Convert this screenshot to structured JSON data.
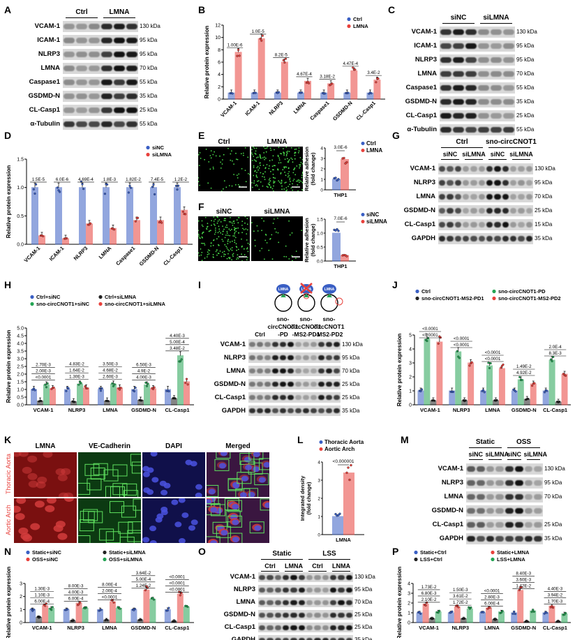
{
  "kda": {
    "k130": "130 kDa",
    "k95": "95 kDa",
    "k70": "70 kDa",
    "k55": "55 kDa",
    "k35": "35 kDa",
    "k25": "25 kDa",
    "k15": "15 kDa"
  },
  "panels": {
    "A": {
      "label": "A",
      "groups": [
        "Ctrl",
        "LMNA"
      ],
      "rows": [
        "VCAM-1",
        "ICAM-1",
        "NLRP3",
        "LMNA",
        "Caspase1",
        "GSDMD-N",
        "CL-Casp1",
        "α-Tubulin"
      ],
      "kda": [
        "130 kDa",
        "95 kDa",
        "95 kDa",
        "70 kDa",
        "55 kDa",
        "35 kDa",
        "25 kDa",
        "55 kDa"
      ]
    },
    "C": {
      "label": "C",
      "groups": [
        "siNC",
        "siLMNA"
      ],
      "rows": [
        "VCAM-1",
        "ICAM-1",
        "NLRP3",
        "LMNA",
        "Caspase1",
        "GSDMD-N",
        "CL-Casp1",
        "α-Tubulin"
      ],
      "kda": [
        "130 kDa",
        "95 kDa",
        "95 kDa",
        "70 kDa",
        "55 kDa",
        "35 kDa",
        "25 kDa",
        "55 kDa"
      ]
    },
    "E": {
      "label": "E",
      "img_labels": [
        "Ctrl",
        "LMNA"
      ],
      "legend": [
        "Ctrl",
        "LMNA"
      ],
      "ylabel": "Relative adhesion\n(fold change)",
      "xlabel": "THP1",
      "pval": "3.0E-6",
      "yticks": [
        "0",
        "1",
        "2",
        "3",
        "4"
      ]
    },
    "F": {
      "label": "F",
      "img_labels": [
        "siNC",
        "siLMNA"
      ],
      "legend": [
        "siNC",
        "siLMNA"
      ],
      "ylabel": "Relative adhesion\n(fold change)",
      "xlabel": "THP1",
      "pval": "7.0E-6",
      "yticks": [
        "0.0",
        "0.5",
        "1.0",
        "1.5"
      ]
    },
    "G": {
      "label": "G",
      "groups": [
        "Ctrl",
        "sno-circCNOT1"
      ],
      "subgroups": [
        "siNC",
        "siLMNA",
        "siNC",
        "siLMNA"
      ],
      "rows": [
        "VCAM-1",
        "NLRP3",
        "LMNA",
        "GSDMD-N",
        "CL-Casp1",
        "GAPDH"
      ],
      "kda": [
        "130 kDa",
        "95 kDa",
        "70 kDa",
        "25 kDa",
        "15 kDa",
        "35 kDa"
      ]
    },
    "I": {
      "label": "I",
      "cols": [
        "Ctrl",
        "sno-\ncircCNOT1\n-PD",
        "sno-\ncircCNOT1\n-MS2-PD1",
        "sno-\ncircCNOT1\n-MS2-PD2"
      ],
      "icon_text": "LMNA",
      "rows": [
        "VCAM-1",
        "NLRP3",
        "LMNA",
        "GSDMD-N",
        "CL-Casp1",
        "GAPDH"
      ],
      "kda": [
        "130 kDa",
        "95 kDa",
        "70 kDa",
        "25 kDa",
        "25 kDa",
        "35 kDa"
      ]
    },
    "K": {
      "label": "K",
      "cols": [
        "LMNA",
        "VE-Cadherin",
        "DAPI",
        "Merged"
      ],
      "rows": [
        "Thoracic Aorta",
        "Aortic Arch"
      ]
    },
    "L": {
      "label": "L",
      "legend": [
        "Thoracic Aorta",
        "Aortic Arch"
      ],
      "ylabel": "Integrated density\n(fold change)",
      "xlabel": "LMNA",
      "pval": "<0.000001",
      "yticks": [
        "0",
        "1",
        "2",
        "3",
        "4"
      ]
    },
    "M": {
      "label": "M",
      "groups": [
        "Static",
        "OSS"
      ],
      "subgroups": [
        "siNC",
        "siLMNA",
        "siNC",
        "siLMNA"
      ],
      "rows": [
        "VCAM-1",
        "NLRP3",
        "LMNA",
        "GSDMD-N",
        "CL-Casp1",
        "GAPDH"
      ],
      "kda": [
        "130 kDa",
        "95 kDa",
        "70 kDa",
        "",
        "25 kDa",
        "35 kDa"
      ]
    },
    "O": {
      "label": "O",
      "groups": [
        "Static",
        "LSS"
      ],
      "subgroups": [
        "Ctrl",
        "LMNA",
        "Ctrl",
        "LNMA"
      ],
      "rows": [
        "VCAM-1",
        "NLRP3",
        "LMNA",
        "GSDMD-N",
        "CL-Casp1",
        "GAPDH"
      ],
      "kda": [
        "130 kDa",
        "95 kDa",
        "70 kDa",
        "25 kDa",
        "25 kDa",
        "35 kDa"
      ]
    }
  },
  "colors": {
    "blue": "#3a5fc4",
    "red": "#e8413c",
    "black": "#222222",
    "green": "#24a454"
  },
  "chart_data": [
    {
      "panel": "B",
      "type": "bar",
      "ylabel": "Relative protein expression",
      "ylim": [
        0,
        12
      ],
      "yticks": [
        "0",
        "2",
        "4",
        "6",
        "8",
        "10",
        "12"
      ],
      "categories": [
        "VCAM-1",
        "ICAM-1",
        "NLRP3",
        "LMNA",
        "Caspase1",
        "GSDMD-N",
        "CL-Casp1"
      ],
      "series": [
        {
          "name": "Ctrl",
          "values": [
            1,
            1,
            1,
            1,
            1,
            1,
            1
          ]
        },
        {
          "name": "LMNA",
          "values": [
            7.6,
            9.8,
            6.0,
            2.9,
            2.5,
            4.6,
            3.1
          ]
        }
      ],
      "pvals": [
        "1.00E-6",
        "1.0E-5",
        "8.2E-5",
        "4.67E-4",
        "3.18E-2",
        "4.47E-4",
        "3.4E-2"
      ],
      "legend": "top-right"
    },
    {
      "panel": "D",
      "type": "bar",
      "ylabel": "Relative protein expression",
      "ylim": [
        0,
        1.5
      ],
      "yticks": [
        "0.0",
        "0.5",
        "1.0",
        "1.5"
      ],
      "categories": [
        "VCAM-1",
        "ICAM-1",
        "NLRP3",
        "LMNA",
        "Caspase1",
        "GSDMD-N",
        "CL-Casp1"
      ],
      "series": [
        {
          "name": "siNC",
          "values": [
            1,
            1,
            1,
            1,
            1,
            1,
            1
          ]
        },
        {
          "name": "siLMNA",
          "values": [
            0.15,
            0.1,
            0.36,
            0.28,
            0.42,
            0.42,
            0.6
          ]
        }
      ],
      "pvals": [
        "1.5E-5",
        "6.0E-6",
        "4.69E-4",
        "1.8E-3",
        "1.82E-2",
        "7.4E-5",
        "1.2E-2"
      ],
      "legend": "top-right"
    },
    {
      "panel": "H",
      "type": "bar",
      "ylabel": "Relative protein expression",
      "ylim": [
        0,
        5
      ],
      "yticks": [
        "0.0",
        "0.5",
        "1.0",
        "1.5",
        "2.0",
        "2.5",
        "3.0",
        "3.5",
        "4.0",
        "4.5",
        "5.0"
      ],
      "categories": [
        "VCAM-1",
        "NLRP3",
        "LMNA",
        "GSDMD-N",
        "CL-Casp1"
      ],
      "series": [
        {
          "name": "Ctrl+siNC",
          "values": [
            1,
            1,
            1,
            1,
            1
          ]
        },
        {
          "name": "Ctrl+siLMNA",
          "values": [
            0.25,
            0.2,
            0.25,
            0.3,
            0.4
          ]
        },
        {
          "name": "sno-circCNOT1+siNC",
          "values": [
            1.3,
            1.35,
            1.35,
            1.3,
            3.2
          ]
        },
        {
          "name": "sno-circCNOT1+siLMNA",
          "values": [
            1.05,
            1.1,
            1.1,
            1.05,
            1.5
          ]
        }
      ],
      "pvals": [
        "<0.0001",
        "2.00E-3",
        "2.70E-3",
        "1.30E-3",
        "1.64E-2",
        "4.83E-2",
        "2.60E-3",
        "4.68E-2",
        "3.50E-3",
        "4.00E-3",
        "4.9E-2",
        "6.50E-3",
        "3.48E-2",
        "5.00E-4",
        "4.40E-3"
      ],
      "legend": "top"
    },
    {
      "panel": "J",
      "type": "bar",
      "ylabel": "Relative protein expression",
      "ylim": [
        0,
        5
      ],
      "yticks": [
        "0",
        "1",
        "2",
        "3",
        "4",
        "5"
      ],
      "categories": [
        "VCAM-1",
        "NLRP3",
        "LMNA",
        "GSDMD-N",
        "CL-Casp1"
      ],
      "series": [
        {
          "name": "Ctrl",
          "values": [
            1,
            1,
            1,
            1,
            1
          ]
        },
        {
          "name": "sno-circCNOT1-PD",
          "values": [
            4.7,
            3.8,
            2.8,
            1.8,
            3.2
          ]
        },
        {
          "name": "sno-circCNOT1-MS2-PD1",
          "values": [
            0.3,
            0.3,
            0.3,
            0.4,
            0.2
          ]
        },
        {
          "name": "sno-circCNOT1-MS2-PD2",
          "values": [
            4.5,
            3.0,
            2.6,
            1.5,
            2.2
          ]
        }
      ],
      "pvals": [
        "<0.0001",
        "<0.0001",
        "<0.0001",
        "<0.0001",
        "<0.0001",
        "<0.0001",
        "4.92E-2",
        "1.49E-2",
        "8.3E-3",
        "2.0E-4"
      ],
      "legend": "top"
    },
    {
      "panel": "N",
      "type": "bar",
      "ylabel": "Relative protein expression",
      "ylim": [
        0,
        3
      ],
      "yticks": [
        "0",
        "1",
        "2",
        "3"
      ],
      "categories": [
        "VCAM-1",
        "NLRP3",
        "LMNA",
        "GSDMD-N",
        "CL-Casp1"
      ],
      "series": [
        {
          "name": "Static+siNC",
          "values": [
            1,
            1,
            1,
            1,
            1
          ]
        },
        {
          "name": "Static+siLMNA",
          "values": [
            0.4,
            0.15,
            0.2,
            0.2,
            0.1
          ]
        },
        {
          "name": "OSS+siNC",
          "values": [
            1.3,
            1.5,
            1.6,
            2.5,
            2.2
          ]
        },
        {
          "name": "OSS+siLMNA",
          "values": [
            1.1,
            1.1,
            1.1,
            1.8,
            1.2
          ]
        }
      ],
      "pvals": [
        "6.00E-4",
        "1.10E-3",
        "1.30E-3",
        "6.00E-4",
        "4.00E-3",
        "8.00E-3",
        "<0.0001",
        "2.00E-4",
        "8.00E-4",
        "1.24E-2",
        "5.00E-4",
        "3.64E-2",
        "<0.0001",
        "<0.0001",
        "<0.0001"
      ],
      "legend": "top"
    },
    {
      "panel": "P",
      "type": "bar",
      "ylabel": "Relative protein expression",
      "ylim": [
        0,
        4
      ],
      "yticks": [
        "0",
        "1",
        "2",
        "3",
        "4"
      ],
      "categories": [
        "VCAM-1",
        "NLRP3",
        "LMNA",
        "GSDMD-N",
        "CL-Casp1"
      ],
      "series": [
        {
          "name": "Static+Ctrl",
          "values": [
            1,
            1,
            1,
            1,
            1
          ]
        },
        {
          "name": "Static+LMNA",
          "values": [
            1.9,
            1.6,
            1.5,
            3.3,
            1.7
          ]
        },
        {
          "name": "LSS+Ctrl",
          "values": [
            0.4,
            0.4,
            0.3,
            0.1,
            0.1
          ]
        },
        {
          "name": "LSS+LMNA",
          "values": [
            1.1,
            1.4,
            1.1,
            1.2,
            0.9
          ]
        }
      ],
      "pvals": [
        "2.10E-2",
        "6.80E-3",
        "1.73E-2",
        "1.72E-2",
        "3.61E-2",
        "1.50E-3",
        "6.00E-4",
        "2.80E-3",
        "<0.0001",
        "1.42E-2",
        "3.60E-3",
        "8.40E-3",
        "1.70E-3",
        "3.94E-2",
        "4.40E-3"
      ],
      "legend": "top"
    }
  ]
}
